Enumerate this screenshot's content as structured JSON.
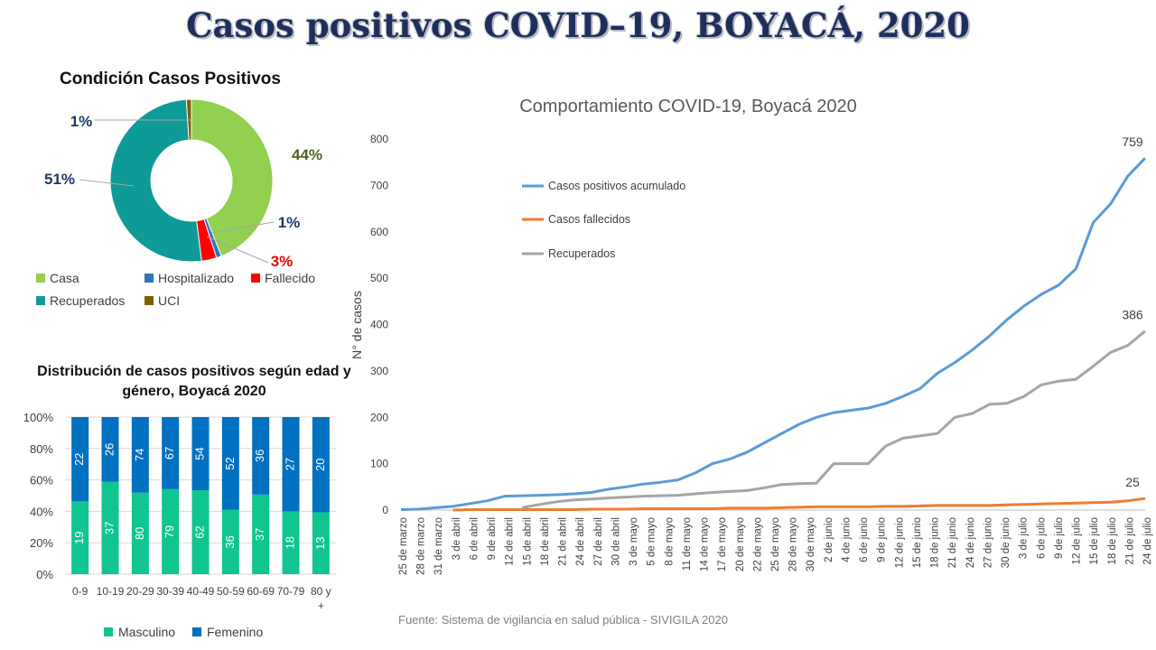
{
  "header": {
    "title": "Casos positivos COVID–19, BOYACÁ, 2020"
  },
  "source_note": "Fuente: Sistema de vigilancia en salud pública - SIVIGILA 2020",
  "colors": {
    "casa": "#92d050",
    "hospitalizado": "#2e75b6",
    "fallecido": "#ff0000",
    "recuperados": "#0e9a97",
    "uci": "#7f6000",
    "masculino": "#10c58f",
    "femenino": "#0070c0",
    "acumulado": "#5b9bd5",
    "fallecidos_line": "#ed7d31",
    "recuperados_line": "#a5a5a5"
  },
  "chart_data": [
    {
      "type": "pie",
      "title": "Condición Casos Positivos",
      "slices": [
        {
          "name": "Casa",
          "value": 44,
          "label": "44%",
          "color": "#92d050",
          "label_color": "#4f6228"
        },
        {
          "name": "Hospitalizado",
          "value": 1,
          "label": "1%",
          "color": "#2e75b6",
          "label_color": "#1f3864"
        },
        {
          "name": "Fallecido",
          "value": 3,
          "label": "3%",
          "color": "#ff0000",
          "label_color": "#e60000"
        },
        {
          "name": "Recuperados",
          "value": 51,
          "label": "51%",
          "color": "#0e9a97",
          "label_color": "#1f3864"
        },
        {
          "name": "UCI",
          "value": 1,
          "label": "1%",
          "color": "#7f6000",
          "label_color": "#1f3864"
        }
      ],
      "legend": [
        "Casa",
        "Hospitalizado",
        "Fallecido",
        "Recuperados",
        "UCI"
      ]
    },
    {
      "type": "bar",
      "stacked": "percent",
      "title": "Distribución de casos positivos según edad y género, Boyacá 2020",
      "categories": [
        "0-9",
        "10-19",
        "20-29",
        "30-39",
        "40-49",
        "50-59",
        "60-69",
        "70-79",
        "80 y +"
      ],
      "series": [
        {
          "name": "Masculino",
          "values": [
            19,
            37,
            80,
            79,
            62,
            36,
            37,
            18,
            13
          ]
        },
        {
          "name": "Femenino",
          "values": [
            22,
            26,
            74,
            67,
            54,
            52,
            36,
            27,
            20
          ]
        }
      ],
      "yticks": [
        "0%",
        "20%",
        "40%",
        "60%",
        "80%",
        "100%"
      ],
      "ylim": [
        0,
        100
      ]
    },
    {
      "type": "line",
      "title": "Comportamiento COVID-19, Boyacá 2020",
      "ylabel": "N° de casos",
      "ylim": [
        0,
        800
      ],
      "yticks": [
        0,
        100,
        200,
        300,
        400,
        500,
        600,
        700,
        800
      ],
      "xticks": [
        "25 de marzo",
        "28 de marzo",
        "31 de marzo",
        "3 de abril",
        "6 de abril",
        "9 de abril",
        "12 de abril",
        "15 de abril",
        "18 de abril",
        "21 de abril",
        "24 de abril",
        "27 de abril",
        "30 de abril",
        "3 de mayo",
        "5 de mayo",
        "8 de mayo",
        "11 de mayo",
        "14 de mayo",
        "17 de mayo",
        "20 de mayo",
        "22 de mayo",
        "25 de mayo",
        "28 de mayo",
        "30 de mayo",
        "2 de junio",
        "4 de junio",
        "6 de junio",
        "9 de junio",
        "12 de junio",
        "15 de junio",
        "18 de junio",
        "21 de junio",
        "24 de junio",
        "27 de junio",
        "30 de junio",
        "3 de julio",
        "6 de julio",
        "9 de julio",
        "12 de julio",
        "15 de julio",
        "18 de julio",
        "21 de julio",
        "24 de julio"
      ],
      "series": [
        {
          "name": "Casos positivos acumulado",
          "end_label": "759",
          "values": [
            1,
            2,
            5,
            8,
            14,
            20,
            30,
            31,
            32,
            33,
            35,
            38,
            45,
            50,
            56,
            60,
            65,
            80,
            100,
            110,
            125,
            145,
            165,
            185,
            200,
            210,
            215,
            220,
            230,
            245,
            262,
            295,
            318,
            345,
            375,
            410,
            440,
            465,
            485,
            520,
            620,
            660,
            720,
            759
          ]
        },
        {
          "name": "Casos fallecidos",
          "end_label": "25",
          "values": [
            null,
            null,
            null,
            0,
            1,
            1,
            1,
            1,
            1,
            1,
            1,
            2,
            2,
            2,
            3,
            3,
            3,
            3,
            3,
            4,
            4,
            4,
            5,
            6,
            7,
            7,
            7,
            7,
            8,
            8,
            9,
            10,
            10,
            10,
            10,
            11,
            12,
            13,
            14,
            15,
            16,
            17,
            20,
            25
          ]
        },
        {
          "name": "Recuperados",
          "end_label": "386",
          "values": [
            null,
            null,
            null,
            null,
            null,
            null,
            null,
            5,
            12,
            18,
            22,
            24,
            26,
            28,
            30,
            31,
            32,
            35,
            38,
            40,
            42,
            48,
            55,
            57,
            58,
            100,
            100,
            100,
            138,
            155,
            160,
            165,
            200,
            208,
            228,
            230,
            245,
            270,
            278,
            282,
            310,
            340,
            355,
            386
          ]
        }
      ]
    }
  ]
}
